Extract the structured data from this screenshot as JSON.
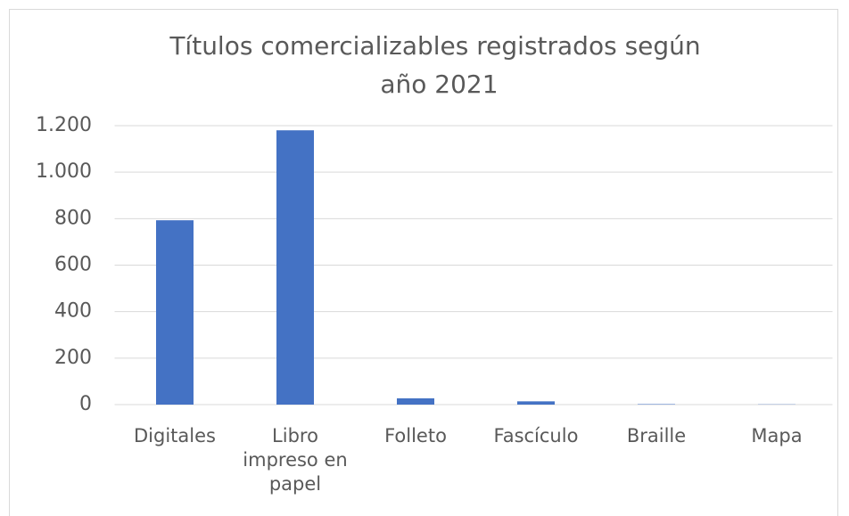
{
  "chart_data": {
    "type": "bar",
    "title": "Títulos comercializables registrados según año 2021",
    "categories": [
      "Digitales",
      "Libro impreso en papel",
      "Folleto",
      "Fascículo",
      "Braille",
      "Mapa"
    ],
    "values": [
      793,
      1180,
      27,
      14,
      2,
      1
    ],
    "color": "#4472c4",
    "ylim": [
      0,
      1200
    ],
    "yticks": [
      0,
      200,
      400,
      600,
      800,
      {
        "value": 1000,
        "label": "1.000"
      },
      {
        "value": 1200,
        "label": "1.200"
      }
    ],
    "grid": true
  }
}
